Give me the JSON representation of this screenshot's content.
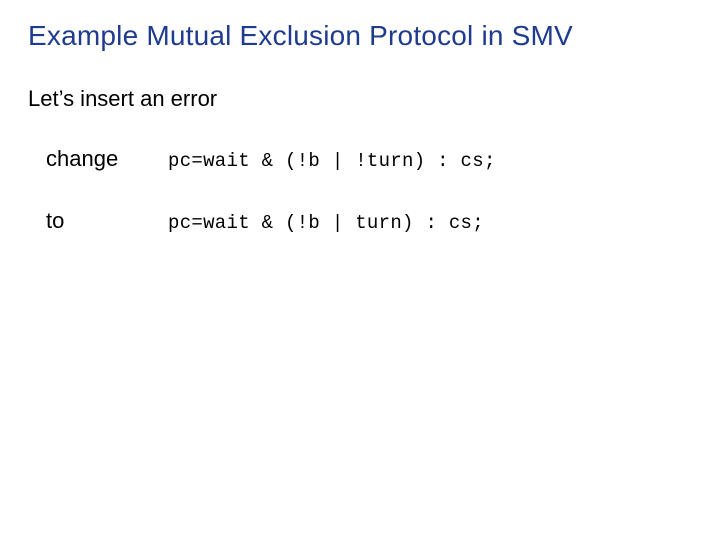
{
  "title": {
    "text": "Example Mutual Exclusion Protocol in SMV",
    "color": "#1f3b8f",
    "fontsize": 28
  },
  "subtitle": {
    "text": "Let’s insert an error",
    "color": "#000000",
    "fontsize": 22
  },
  "rows": [
    {
      "label": "change",
      "code": "pc=wait & (!b | !turn) : cs;"
    },
    {
      "label": "to",
      "code": "pc=wait & (!b | turn) : cs;"
    }
  ],
  "style": {
    "title_color": "#1f3b8f",
    "body_color": "#000000",
    "code_font": "Courier New",
    "body_font": "Arial",
    "background": "#ffffff",
    "label_fontsize": 22,
    "code_fontsize": 19
  }
}
